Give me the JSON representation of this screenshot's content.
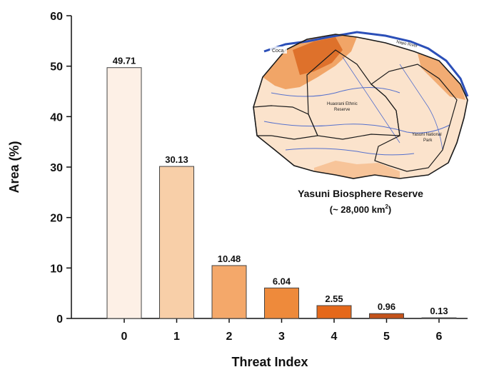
{
  "chart_data": {
    "type": "bar",
    "xlabel": "Threat Index",
    "ylabel": "Area (%)",
    "ylim": [
      0,
      60
    ],
    "yticks": [
      "0",
      "10",
      "20",
      "30",
      "40",
      "50",
      "60"
    ],
    "categories": [
      "0",
      "1",
      "2",
      "3",
      "4",
      "5",
      "6"
    ],
    "values": [
      49.71,
      30.13,
      10.48,
      6.04,
      2.55,
      0.96,
      0.13
    ],
    "value_labels": [
      "49.71",
      "30.13",
      "10.48",
      "6.04",
      "2.55",
      "0.96",
      "0.13"
    ],
    "bar_colors": [
      "#fdf0e6",
      "#f8cfa8",
      "#f4a86a",
      "#ee8a3b",
      "#e5681a",
      "#c4521a",
      "#a03c14"
    ],
    "grid": false,
    "legend": "none"
  },
  "inset": {
    "title": "Yasuni Biosphere Reserve",
    "subtitle_prefix": "(~ 28,000 km",
    "subtitle_sup": "2",
    "subtitle_suffix": ")",
    "labels": {
      "coca": "Coca",
      "napo": "Napo River",
      "huaorani_1": "Huaorani Ethnic",
      "huaorani_2": "Reserve",
      "yasuni_1": "Yasuni National",
      "yasuni_2": "Park"
    }
  }
}
